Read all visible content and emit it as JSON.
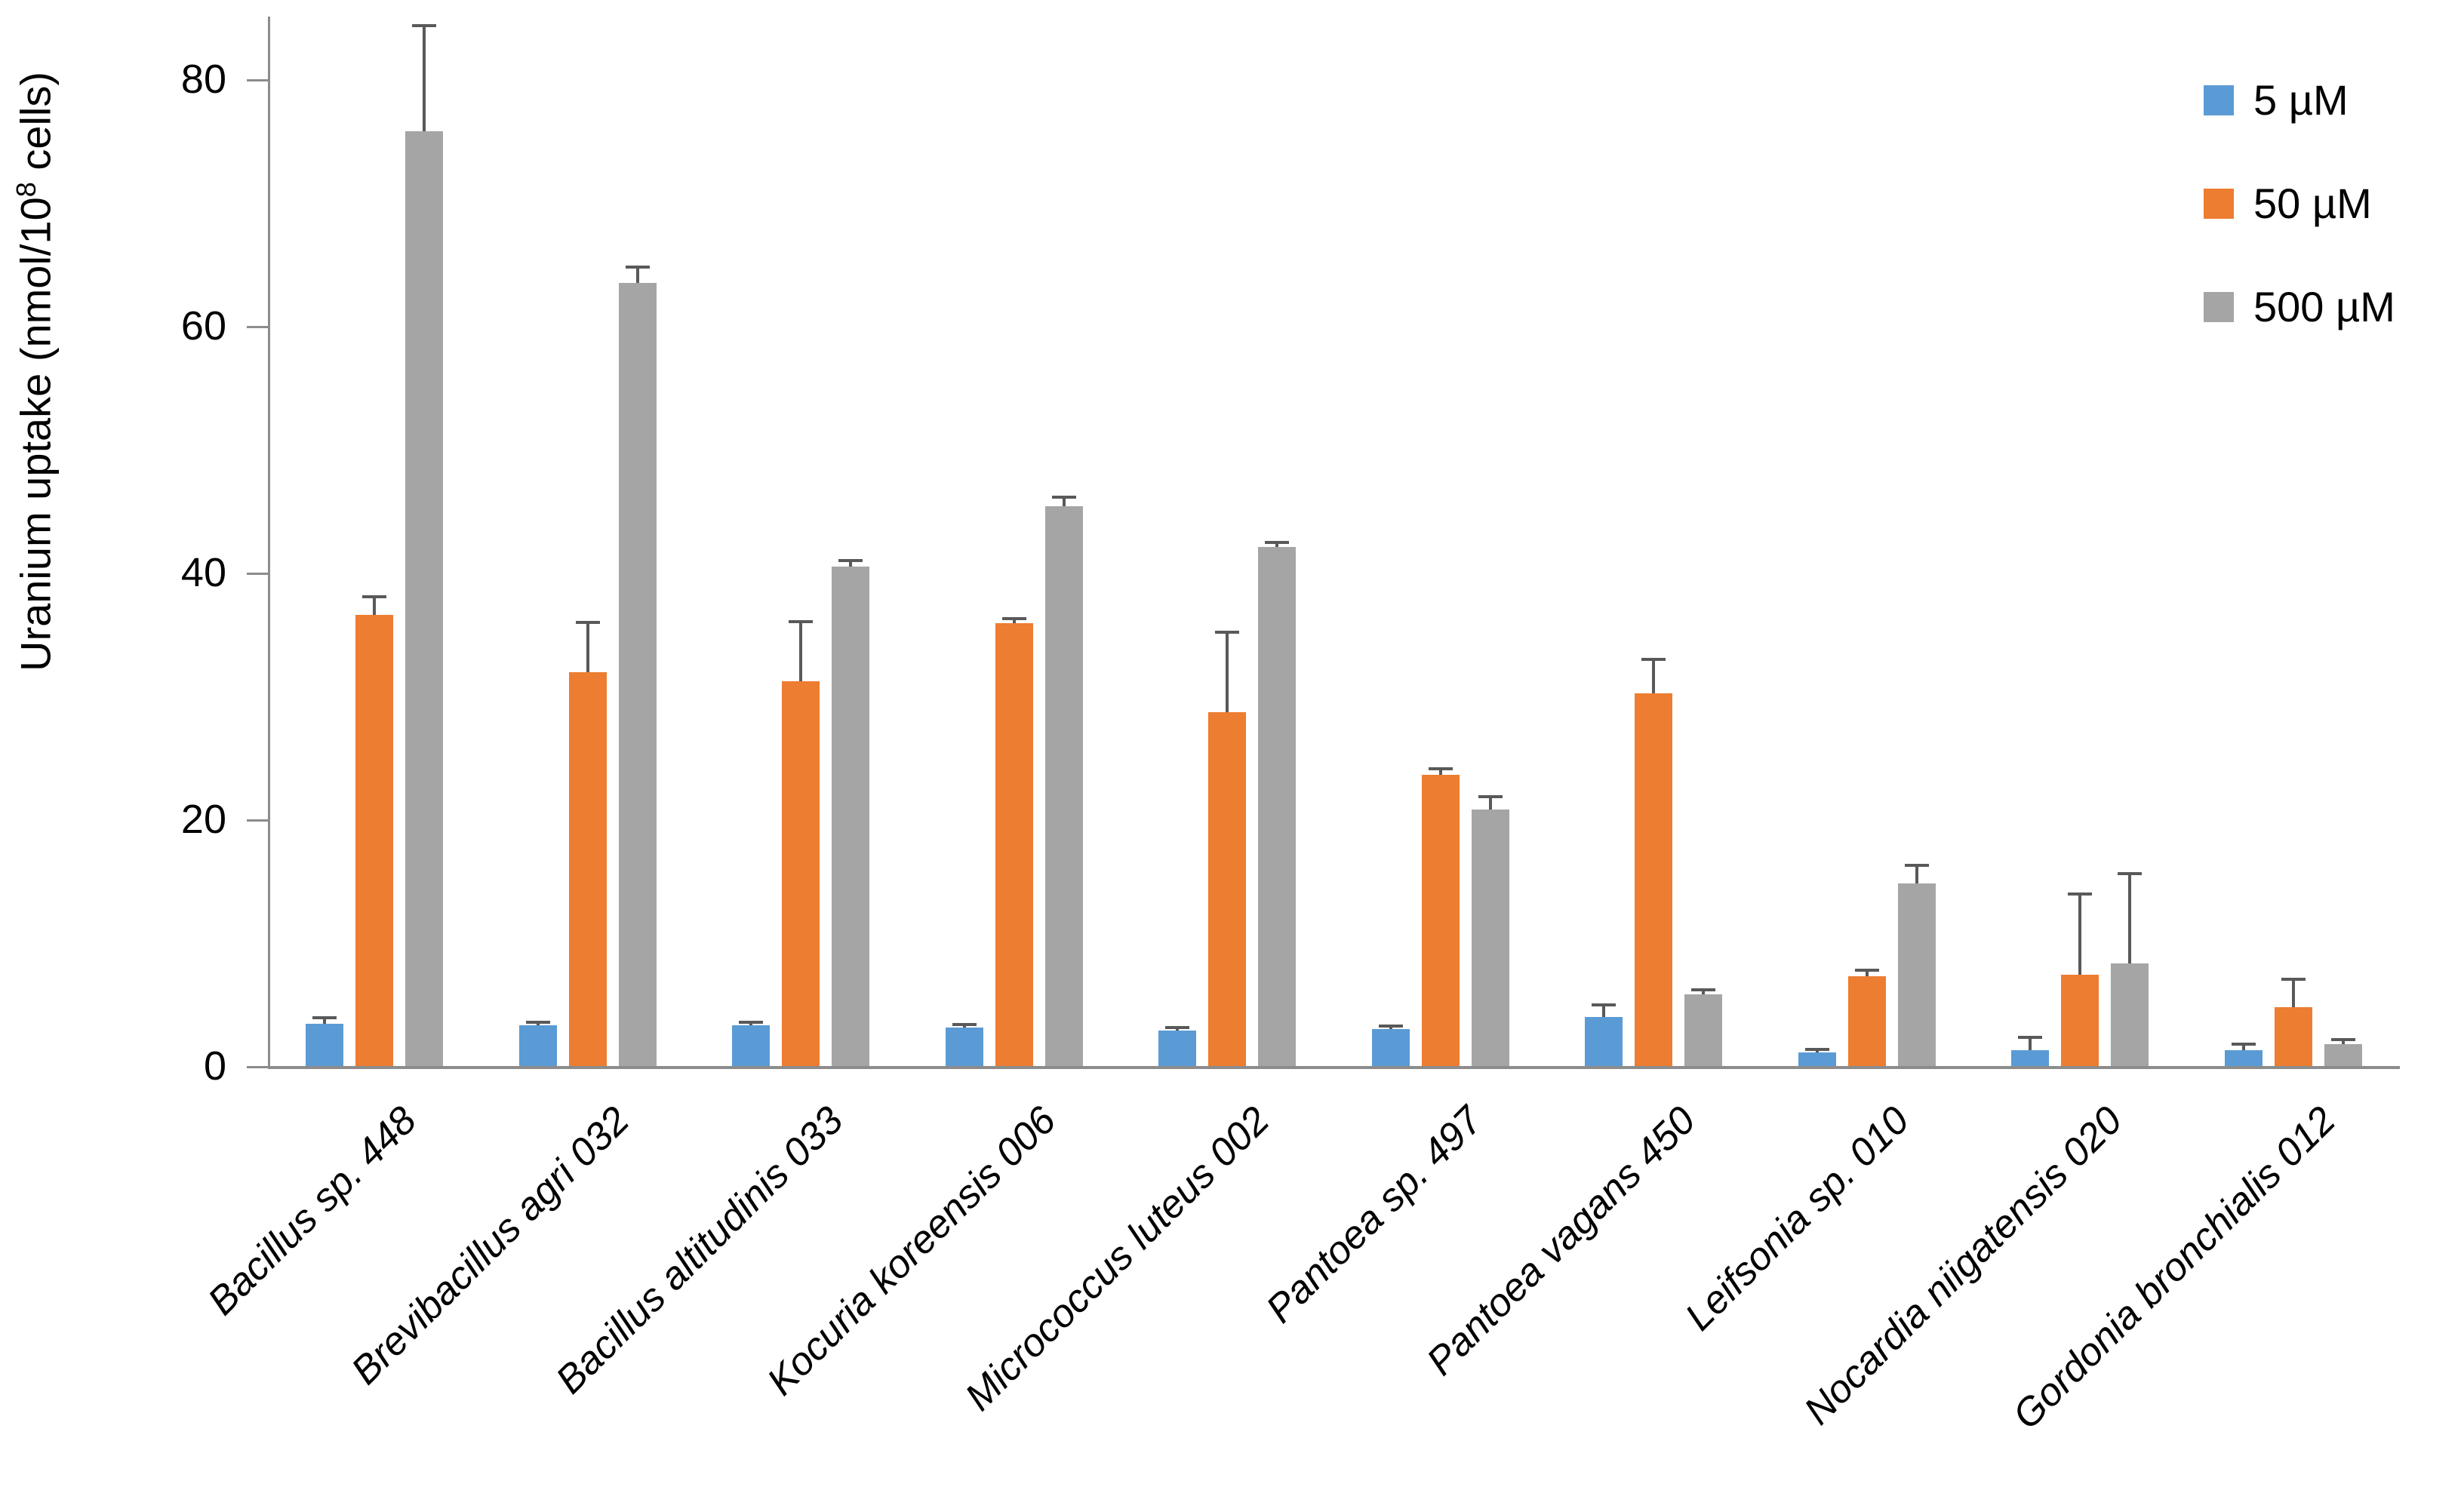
{
  "figure": {
    "ylabel_prefix": "Uranium uptake (nmol/10",
    "ylabel_sup": "8",
    "ylabel_suffix": " cells)"
  },
  "legend": {
    "items": [
      {
        "label": "5 µM",
        "color": "#5B9BD5"
      },
      {
        "label": "50 µM",
        "color": "#ED7D31"
      },
      {
        "label": "500 µM",
        "color": "#A5A5A5"
      }
    ]
  },
  "chart_data": {
    "type": "bar",
    "title": "",
    "xlabel": "",
    "ylabel": "Uranium uptake (nmol/10^8 cells)",
    "ylim": [
      0,
      85
    ],
    "yticks": [
      0,
      20,
      40,
      60,
      80
    ],
    "grid": false,
    "legend_position": "top-right",
    "categories": [
      "Bacillus sp. 448",
      "Brevibacillus agri 032",
      "Bacillus altitudinis 033",
      "Kocuria koreensis 006",
      "Micrococcus luteus 002",
      "Pantoea sp. 497",
      "Pantoea vagans 450",
      "Leifsonia sp. 010",
      "Nocardia niigatensis 020",
      "Gordonia bronchialis 012"
    ],
    "series": [
      {
        "name": "5 µM",
        "color": "#5B9BD5",
        "values": [
          3.4,
          3.3,
          3.3,
          3.1,
          2.9,
          3.0,
          4.0,
          1.1,
          1.3,
          1.3
        ],
        "errors": [
          0.4,
          0.2,
          0.2,
          0.2,
          0.2,
          0.2,
          0.9,
          0.2,
          1.0,
          0.4
        ]
      },
      {
        "name": "50 µM",
        "color": "#ED7D31",
        "values": [
          36.6,
          31.9,
          31.2,
          35.9,
          28.7,
          23.6,
          30.2,
          7.3,
          7.4,
          4.8
        ],
        "errors": [
          1.4,
          4.0,
          4.8,
          0.3,
          6.4,
          0.4,
          2.7,
          0.4,
          6.5,
          2.2
        ]
      },
      {
        "name": "500 µM",
        "color": "#A5A5A5",
        "values": [
          75.8,
          63.5,
          40.5,
          45.4,
          42.1,
          20.8,
          5.8,
          14.8,
          8.3,
          1.8
        ],
        "errors": [
          8.5,
          1.2,
          0.4,
          0.7,
          0.3,
          1.0,
          0.3,
          1.4,
          7.2,
          0.3
        ]
      }
    ],
    "error_bar_color": "#595959",
    "axis_color": "#8C8C8C"
  }
}
